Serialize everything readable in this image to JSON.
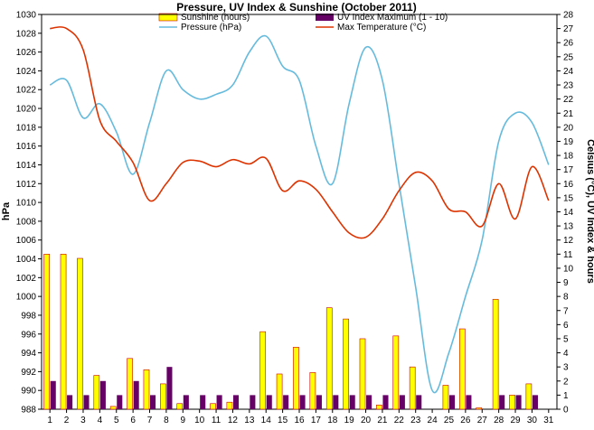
{
  "chart_data": {
    "type": "bar",
    "title": "Pressure, UV Index & Sunshine (October 2011)",
    "xlabel": "",
    "ylabel_left": "hPa",
    "ylabel_right": "Celsius (°C), UV Index & hours",
    "ylim_left": [
      988,
      1030
    ],
    "ylim_right": [
      0,
      28
    ],
    "categories": [
      "1",
      "2",
      "3",
      "4",
      "5",
      "6",
      "7",
      "8",
      "9",
      "10",
      "11",
      "12",
      "13",
      "14",
      "15",
      "16",
      "17",
      "18",
      "19",
      "20",
      "21",
      "22",
      "23",
      "24",
      "25",
      "26",
      "27",
      "28",
      "29",
      "30",
      "31"
    ],
    "series": [
      {
        "name": "Sunshine (hours)",
        "kind": "bar",
        "axis": "right",
        "color": "#ffff00",
        "values": [
          11.0,
          11.0,
          10.7,
          2.4,
          0.2,
          3.6,
          2.8,
          1.8,
          0.4,
          0.0,
          0.4,
          0.5,
          0.0,
          5.5,
          2.5,
          4.4,
          2.6,
          7.2,
          6.4,
          5.0,
          0.3,
          5.2,
          3.0,
          0.0,
          1.7,
          5.7,
          0.1,
          7.8,
          1.0,
          1.8,
          0.0
        ]
      },
      {
        "name": "UV Index Maximum (1 - 10)",
        "kind": "bar",
        "axis": "right",
        "color": "#660066",
        "values": [
          2,
          1,
          1,
          2,
          1,
          2,
          1,
          3,
          1,
          1,
          1,
          1,
          1,
          1,
          1,
          1,
          1,
          1,
          1,
          1,
          1,
          1,
          1,
          0,
          1,
          1,
          0,
          1,
          1,
          1,
          0
        ]
      },
      {
        "name": "Pressure (hPa)",
        "kind": "line",
        "axis": "left",
        "color": "#66bbdd",
        "values": [
          1022.5,
          1023.0,
          1019.0,
          1020.5,
          1017.5,
          1013.0,
          1018.5,
          1024.0,
          1022.0,
          1021.0,
          1021.5,
          1022.5,
          1026.0,
          1027.7,
          1024.5,
          1023.0,
          1016.0,
          1012.0,
          1020.5,
          1026.5,
          1023.0,
          1012.0,
          1001.0,
          990.0,
          994.0,
          1000.0,
          1006.0,
          1016.5,
          1019.5,
          1018.5,
          1014.0
        ]
      },
      {
        "name": "Max Temperature (°C)",
        "kind": "line",
        "axis": "right",
        "color": "#dd3300",
        "values": [
          27.0,
          27.0,
          25.5,
          20.5,
          19.0,
          17.5,
          14.8,
          16.0,
          17.5,
          17.6,
          17.2,
          17.7,
          17.4,
          17.8,
          15.5,
          16.2,
          15.6,
          14.0,
          12.5,
          12.2,
          13.5,
          15.5,
          16.8,
          16.2,
          14.2,
          14.0,
          13.0,
          16.0,
          13.5,
          17.2,
          14.8
        ]
      }
    ],
    "left_ticks": [
      "988",
      "990",
      "992",
      "994",
      "996",
      "998",
      "1000",
      "1002",
      "1004",
      "1006",
      "1008",
      "1010",
      "1012",
      "1014",
      "1016",
      "1018",
      "1020",
      "1022",
      "1024",
      "1026",
      "1028",
      "1030"
    ],
    "right_ticks": [
      "0",
      "1",
      "2",
      "3",
      "4",
      "5",
      "6",
      "7",
      "8",
      "9",
      "10",
      "11",
      "12",
      "13",
      "14",
      "15",
      "16",
      "17",
      "18",
      "19",
      "20",
      "21",
      "22",
      "23",
      "24",
      "25",
      "26",
      "27",
      "28"
    ],
    "legend_placement": "top-center",
    "grid": false
  }
}
